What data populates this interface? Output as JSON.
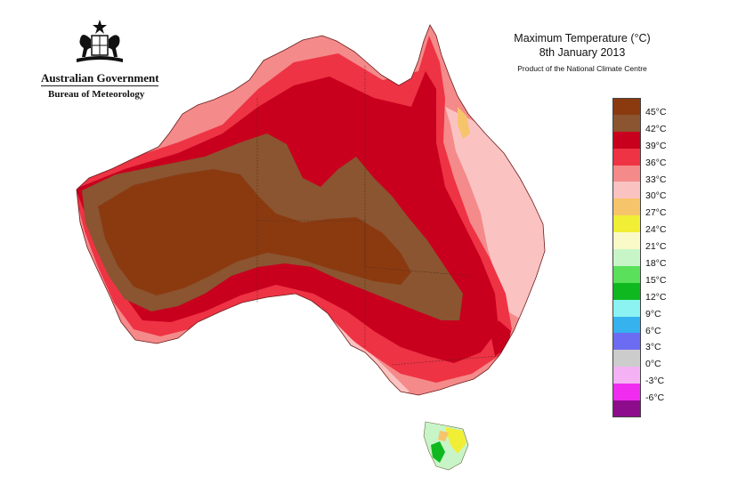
{
  "header": {
    "government": "Australian Government",
    "bureau": "Bureau of Meteorology"
  },
  "title": {
    "line1": "Maximum Temperature (°C)",
    "line2": "8th January 2013",
    "line3": "Product of the National Climate Centre"
  },
  "legend": [
    {
      "color": "#8b3a10",
      "label": "45°C"
    },
    {
      "color": "#8a5530",
      "label": "42°C"
    },
    {
      "color": "#c8001e",
      "label": "39°C"
    },
    {
      "color": "#ee3344",
      "label": "36°C"
    },
    {
      "color": "#f48a8a",
      "label": "33°C"
    },
    {
      "color": "#fbc2c2",
      "label": "30°C"
    },
    {
      "color": "#f6c46a",
      "label": "27°C"
    },
    {
      "color": "#f1ee36",
      "label": "24°C"
    },
    {
      "color": "#fafac8",
      "label": "21°C"
    },
    {
      "color": "#c8f5c8",
      "label": "18°C"
    },
    {
      "color": "#5ae05a",
      "label": "15°C"
    },
    {
      "color": "#10b820",
      "label": "12°C"
    },
    {
      "color": "#8cf2f2",
      "label": "9°C"
    },
    {
      "color": "#36b2ee",
      "label": "6°C"
    },
    {
      "color": "#6c6cf2",
      "label": "3°C"
    },
    {
      "color": "#cccccc",
      "label": "0°C"
    },
    {
      "color": "#f4b2f4",
      "label": "-3°C"
    },
    {
      "color": "#f02cf0",
      "label": "-6°C"
    },
    {
      "color": "#8c0c8c",
      "label": ""
    }
  ]
}
